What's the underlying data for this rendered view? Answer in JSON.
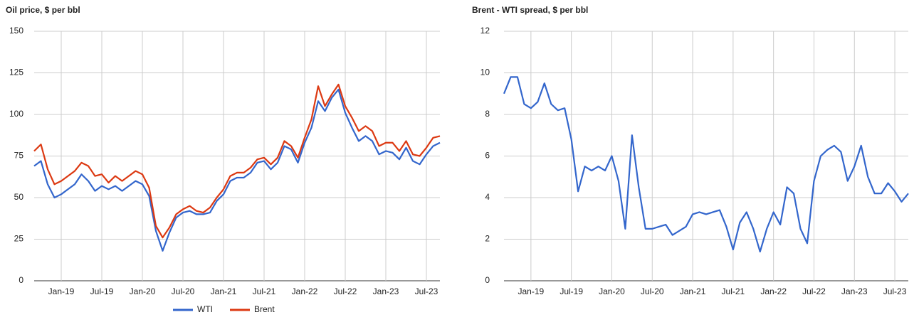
{
  "chart_data": [
    {
      "type": "line",
      "title": "Oil price, $ per bbl",
      "x": [
        "2018-09",
        "2018-10",
        "2018-11",
        "2018-12",
        "2019-01",
        "2019-02",
        "2019-03",
        "2019-04",
        "2019-05",
        "2019-06",
        "2019-07",
        "2019-08",
        "2019-09",
        "2019-10",
        "2019-11",
        "2019-12",
        "2020-01",
        "2020-02",
        "2020-03",
        "2020-04",
        "2020-05",
        "2020-06",
        "2020-07",
        "2020-08",
        "2020-09",
        "2020-10",
        "2020-11",
        "2020-12",
        "2021-01",
        "2021-02",
        "2021-03",
        "2021-04",
        "2021-05",
        "2021-06",
        "2021-07",
        "2021-08",
        "2021-09",
        "2021-10",
        "2021-11",
        "2021-12",
        "2022-01",
        "2022-02",
        "2022-03",
        "2022-04",
        "2022-05",
        "2022-06",
        "2022-07",
        "2022-08",
        "2022-09",
        "2022-10",
        "2022-11",
        "2022-12",
        "2023-01",
        "2023-02",
        "2023-03",
        "2023-04",
        "2023-05",
        "2023-06",
        "2023-07",
        "2023-08",
        "2023-09"
      ],
      "xlim": [
        "2018-09",
        "2023-09"
      ],
      "xticks": [
        {
          "value": "2019-01",
          "label": "Jan-19"
        },
        {
          "value": "2019-07",
          "label": "Jul-19"
        },
        {
          "value": "2020-01",
          "label": "Jan-20"
        },
        {
          "value": "2020-07",
          "label": "Jul-20"
        },
        {
          "value": "2021-01",
          "label": "Jan-21"
        },
        {
          "value": "2021-07",
          "label": "Jul-21"
        },
        {
          "value": "2022-01",
          "label": "Jan-22"
        },
        {
          "value": "2022-07",
          "label": "Jul-22"
        },
        {
          "value": "2023-01",
          "label": "Jan-23"
        },
        {
          "value": "2023-07",
          "label": "Jul-23"
        }
      ],
      "ylim": [
        0,
        150
      ],
      "yticks": [
        0,
        25,
        50,
        75,
        100,
        125,
        150
      ],
      "grid": true,
      "legend": "bottom",
      "series": [
        {
          "name": "WTI",
          "color": "#3366cc",
          "values": [
            69,
            72,
            58,
            50,
            52,
            55,
            58,
            64,
            60,
            54,
            57,
            55,
            57,
            54,
            57,
            60,
            58,
            51,
            30,
            18,
            29,
            38,
            41,
            42,
            40,
            40,
            41,
            48,
            52,
            60,
            62,
            62,
            65,
            71,
            72,
            67,
            71,
            81,
            79,
            71,
            83,
            92,
            108,
            102,
            110,
            115,
            101,
            92,
            84,
            87,
            84,
            76,
            78,
            77,
            73,
            80,
            72,
            70,
            76,
            81,
            83
          ]
        },
        {
          "name": "Brent",
          "color": "#dc3912",
          "values": [
            78,
            82,
            67,
            58,
            60,
            63,
            66,
            71,
            69,
            63,
            64,
            59,
            63,
            60,
            63,
            66,
            64,
            56,
            33,
            26,
            32,
            40,
            43,
            45,
            42,
            41,
            44,
            50,
            55,
            63,
            65,
            65,
            68,
            73,
            74,
            70,
            74,
            84,
            81,
            74,
            86,
            97,
            117,
            105,
            112,
            118,
            105,
            98,
            90,
            93,
            90,
            81,
            83,
            83,
            78,
            84,
            76,
            75,
            80,
            86,
            87
          ]
        }
      ]
    },
    {
      "type": "line",
      "title": "Brent - WTI spread, $ per bbl",
      "x": [
        "2018-09",
        "2018-10",
        "2018-11",
        "2018-12",
        "2019-01",
        "2019-02",
        "2019-03",
        "2019-04",
        "2019-05",
        "2019-06",
        "2019-07",
        "2019-08",
        "2019-09",
        "2019-10",
        "2019-11",
        "2019-12",
        "2020-01",
        "2020-02",
        "2020-03",
        "2020-04",
        "2020-05",
        "2020-06",
        "2020-07",
        "2020-08",
        "2020-09",
        "2020-10",
        "2020-11",
        "2020-12",
        "2021-01",
        "2021-02",
        "2021-03",
        "2021-04",
        "2021-05",
        "2021-06",
        "2021-07",
        "2021-08",
        "2021-09",
        "2021-10",
        "2021-11",
        "2021-12",
        "2022-01",
        "2022-02",
        "2022-03",
        "2022-04",
        "2022-05",
        "2022-06",
        "2022-07",
        "2022-08",
        "2022-09",
        "2022-10",
        "2022-11",
        "2022-12",
        "2023-01",
        "2023-02",
        "2023-03",
        "2023-04",
        "2023-05",
        "2023-06",
        "2023-07",
        "2023-08",
        "2023-09"
      ],
      "xlim": [
        "2018-09",
        "2023-09"
      ],
      "xticks": [
        {
          "value": "2019-01",
          "label": "Jan-19"
        },
        {
          "value": "2019-07",
          "label": "Jul-19"
        },
        {
          "value": "2020-01",
          "label": "Jan-20"
        },
        {
          "value": "2020-07",
          "label": "Jul-20"
        },
        {
          "value": "2021-01",
          "label": "Jan-21"
        },
        {
          "value": "2021-07",
          "label": "Jul-21"
        },
        {
          "value": "2022-01",
          "label": "Jan-22"
        },
        {
          "value": "2022-07",
          "label": "Jul-22"
        },
        {
          "value": "2023-01",
          "label": "Jan-23"
        },
        {
          "value": "2023-07",
          "label": "Jul-23"
        }
      ],
      "ylim": [
        0,
        12
      ],
      "yticks": [
        0,
        2,
        4,
        6,
        8,
        10,
        12
      ],
      "grid": true,
      "series": [
        {
          "color": "#3366cc",
          "values": [
            9,
            9.8,
            9.8,
            8.5,
            8.3,
            8.6,
            9.5,
            8.5,
            8.2,
            8.3,
            6.8,
            4.3,
            5.5,
            5.3,
            5.5,
            5.3,
            6,
            4.8,
            2.5,
            7,
            4.5,
            2.5,
            2.5,
            2.6,
            2.7,
            2.2,
            2.4,
            2.6,
            3.2,
            3.3,
            3.2,
            3.3,
            3.4,
            2.6,
            1.5,
            2.8,
            3.3,
            2.5,
            1.4,
            2.5,
            3.3,
            2.7,
            4.5,
            4.2,
            2.5,
            1.8,
            4.8,
            6,
            6.3,
            6.5,
            6.2,
            4.8,
            5.5,
            6.5,
            5,
            4.2,
            4.2,
            4.7,
            4.3,
            3.8,
            4.2
          ]
        }
      ]
    }
  ]
}
